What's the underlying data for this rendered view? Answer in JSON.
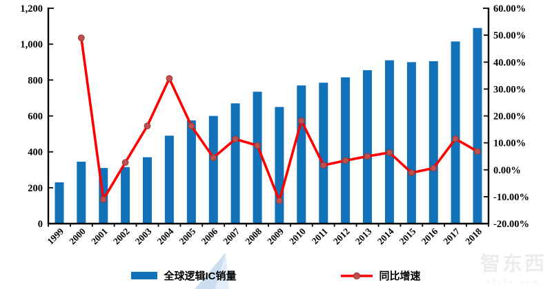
{
  "chart_data": {
    "type": "combo",
    "title": "",
    "categories": [
      "1999",
      "2000",
      "2001",
      "2002",
      "2003",
      "2004",
      "2005",
      "2006",
      "2007",
      "2008",
      "2009",
      "2010",
      "2011",
      "2012",
      "2013",
      "2014",
      "2015",
      "2016",
      "2017",
      "2018"
    ],
    "series": [
      {
        "name": "全球逻辑IC销量",
        "type": "bar",
        "axis": "left",
        "color": "#1272B9",
        "values": [
          230,
          345,
          310,
          315,
          370,
          490,
          575,
          600,
          670,
          735,
          650,
          770,
          785,
          815,
          855,
          910,
          900,
          905,
          1015,
          1090
        ]
      },
      {
        "name": "同比增速",
        "type": "line",
        "axis": "right",
        "color": "#FE0000",
        "marker_color": "#C0504D",
        "marker_edge_color": "#943634",
        "values_percent": [
          null,
          49.0,
          -11.0,
          2.7,
          16.3,
          33.9,
          16.3,
          4.5,
          11.4,
          9.0,
          -11.5,
          18.2,
          1.7,
          3.4,
          5.0,
          6.4,
          -1.1,
          0.6,
          11.5,
          6.8
        ]
      }
    ],
    "left_axis": {
      "min": 0,
      "max": 1200,
      "step": 200,
      "tick_labels": [
        "0",
        "200",
        "400",
        "600",
        "800",
        "1,000",
        "1,200"
      ]
    },
    "right_axis": {
      "min": -20,
      "max": 60,
      "step": 10,
      "tick_labels": [
        "-20.00%",
        "-10.00%",
        "0.00%",
        "10.00%",
        "20.00%",
        "30.00%",
        "40.00%",
        "50.00%",
        "60.00%"
      ]
    },
    "grid": false,
    "legend_position": "bottom"
  },
  "legend": {
    "bar_label": "全球逻辑IC销量",
    "line_label": "同比增速"
  },
  "watermark": {
    "logo_text": "智东西",
    "site_text": "zhidx.com"
  },
  "colors": {
    "bar": "#1272B9",
    "line": "#FE0000",
    "marker": "#C0504D",
    "axis": "#000000",
    "watermark_plane": "#CBDFF1",
    "watermark_plane_light": "#E2EDF8",
    "watermark_text": "#ECECEC"
  }
}
